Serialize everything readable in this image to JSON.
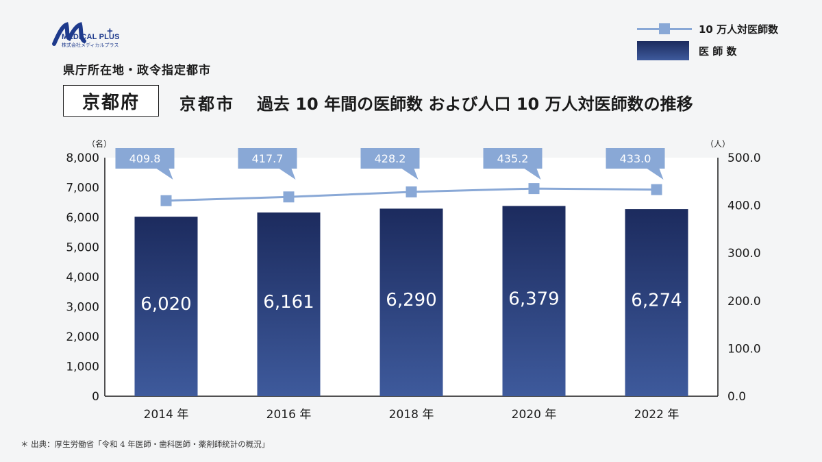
{
  "brand": {
    "name": "MEDICAL PLUS",
    "plus": "+",
    "sub": "株式会社メディカルプラス"
  },
  "header": {
    "category": "県庁所在地・政令指定都市",
    "prefecture": "京都府",
    "city": "京都市",
    "title": "過去 10 年間の医師数 および人口 10 万人対医師数の推移"
  },
  "legend": {
    "line_label": "10 万人対医師数",
    "bar_label": "医 師 数"
  },
  "colors": {
    "bar_top": "#1c2b5e",
    "bar_bottom": "#3e5a9c",
    "line": "#89a8d6",
    "callout": "#89a8d6"
  },
  "chart_data": {
    "type": "bar+line",
    "categories": [
      "2014 年",
      "2016 年",
      "2018 年",
      "2020 年",
      "2022 年"
    ],
    "series": [
      {
        "name": "医 師 数",
        "type": "bar",
        "axis": "left",
        "values": [
          6020,
          6161,
          6290,
          6379,
          6274
        ],
        "labels": [
          "6,020",
          "6,161",
          "6,290",
          "6,379",
          "6,274"
        ]
      },
      {
        "name": "10 万人対医師数",
        "type": "line",
        "axis": "right",
        "values": [
          409.8,
          417.7,
          428.2,
          435.2,
          433.0
        ],
        "labels": [
          "409.8",
          "417.7",
          "428.2",
          "435.2",
          "433.0"
        ]
      }
    ],
    "left_axis": {
      "unit": "（名）",
      "min": 0,
      "max": 8000,
      "ticks": [
        0,
        1000,
        2000,
        3000,
        4000,
        5000,
        6000,
        7000,
        8000
      ],
      "tick_labels": [
        "0",
        "1,000",
        "2,000",
        "3,000",
        "4,000",
        "5,000",
        "6,000",
        "7,000",
        "8,000"
      ]
    },
    "right_axis": {
      "unit": "（人）",
      "min": 0,
      "max": 500,
      "ticks": [
        0,
        100,
        200,
        300,
        400,
        500
      ],
      "tick_labels": [
        "0.0",
        "100.0",
        "200.0",
        "300.0",
        "400.0",
        "500.0"
      ]
    },
    "legend_position": "top-right"
  },
  "footnote": "＊ 出典：厚生労働省「令和 4 年医師・歯科医師・薬剤師統計の概況」"
}
